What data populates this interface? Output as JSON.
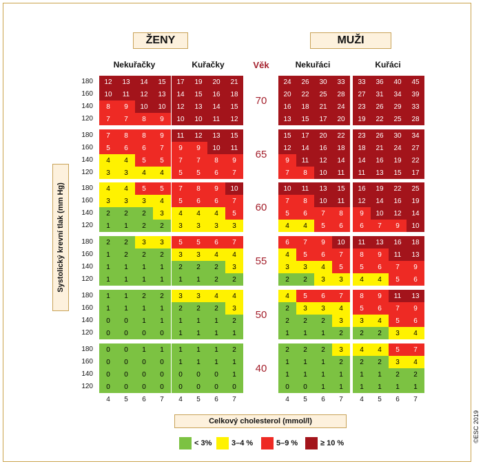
{
  "chart_data": {
    "type": "heatmap",
    "title": "",
    "sex_headers": [
      "ŽENY",
      "MUŽI"
    ],
    "groups": [
      {
        "name": "Nekuřačky",
        "sex": "ŽENY"
      },
      {
        "name": "Kuřačky",
        "sex": "ŽENY"
      },
      {
        "name": "Nekuřáci",
        "sex": "MUŽI"
      },
      {
        "name": "Kuřáci",
        "sex": "MUŽI"
      }
    ],
    "age_header": "Věk",
    "ages": [
      "70",
      "65",
      "60",
      "55",
      "50",
      "40"
    ],
    "sbp_levels": [
      "180",
      "160",
      "140",
      "120"
    ],
    "cholesterol": [
      "4",
      "5",
      "6",
      "7"
    ],
    "ylabel": "Systolický krevní tlak (mm Hg)",
    "xlabel": "Celkový cholesterol (mmol/l)",
    "legend": [
      {
        "label": "< 3%",
        "color": "#7cc242"
      },
      {
        "label": "3–4 %",
        "color": "#fff200"
      },
      {
        "label": "5–9 %",
        "color": "#ee2a24"
      },
      {
        "label": "≥ 10 %",
        "color": "#a3141b"
      }
    ],
    "copyright": "©ESC 2019",
    "values": [
      [
        [
          [
            12,
            13,
            14,
            15
          ],
          [
            10,
            11,
            12,
            13
          ],
          [
            8,
            9,
            10,
            10
          ],
          [
            7,
            7,
            8,
            9
          ]
        ],
        [
          [
            17,
            19,
            20,
            21
          ],
          [
            14,
            15,
            16,
            18
          ],
          [
            12,
            13,
            14,
            15
          ],
          [
            10,
            10,
            11,
            12
          ]
        ],
        [
          [
            24,
            26,
            30,
            33
          ],
          [
            20,
            22,
            25,
            28
          ],
          [
            16,
            18,
            21,
            24
          ],
          [
            13,
            15,
            17,
            20
          ]
        ],
        [
          [
            33,
            36,
            40,
            45
          ],
          [
            27,
            31,
            34,
            39
          ],
          [
            23,
            26,
            29,
            33
          ],
          [
            19,
            22,
            25,
            28
          ]
        ]
      ],
      [
        [
          [
            7,
            8,
            8,
            9
          ],
          [
            5,
            6,
            6,
            7
          ],
          [
            4,
            4,
            5,
            5
          ],
          [
            3,
            3,
            4,
            4
          ]
        ],
        [
          [
            11,
            12,
            13,
            15
          ],
          [
            9,
            9,
            10,
            11
          ],
          [
            7,
            7,
            8,
            9
          ],
          [
            5,
            5,
            6,
            7
          ]
        ],
        [
          [
            15,
            17,
            20,
            22
          ],
          [
            12,
            14,
            16,
            18
          ],
          [
            9,
            11,
            12,
            14
          ],
          [
            7,
            8,
            10,
            11
          ]
        ],
        [
          [
            23,
            26,
            30,
            34
          ],
          [
            18,
            21,
            24,
            27
          ],
          [
            14,
            16,
            19,
            22
          ],
          [
            11,
            13,
            15,
            17
          ]
        ]
      ],
      [
        [
          [
            4,
            4,
            5,
            5
          ],
          [
            3,
            3,
            3,
            4
          ],
          [
            2,
            2,
            2,
            3
          ],
          [
            1,
            1,
            2,
            2
          ]
        ],
        [
          [
            7,
            8,
            9,
            10
          ],
          [
            5,
            6,
            6,
            7
          ],
          [
            4,
            4,
            4,
            5
          ],
          [
            3,
            3,
            3,
            3
          ]
        ],
        [
          [
            10,
            11,
            13,
            15
          ],
          [
            7,
            8,
            10,
            11
          ],
          [
            5,
            6,
            7,
            8
          ],
          [
            4,
            4,
            5,
            6
          ]
        ],
        [
          [
            16,
            19,
            22,
            25
          ],
          [
            12,
            14,
            16,
            19
          ],
          [
            9,
            10,
            12,
            14
          ],
          [
            6,
            7,
            9,
            10
          ]
        ]
      ],
      [
        [
          [
            2,
            2,
            3,
            3
          ],
          [
            1,
            2,
            2,
            2
          ],
          [
            1,
            1,
            1,
            1
          ],
          [
            1,
            1,
            1,
            1
          ]
        ],
        [
          [
            5,
            5,
            6,
            7
          ],
          [
            3,
            3,
            4,
            4
          ],
          [
            2,
            2,
            2,
            3
          ],
          [
            1,
            1,
            2,
            2
          ]
        ],
        [
          [
            6,
            7,
            9,
            10
          ],
          [
            4,
            5,
            6,
            7
          ],
          [
            3,
            3,
            4,
            5
          ],
          [
            2,
            2,
            3,
            3
          ]
        ],
        [
          [
            11,
            13,
            16,
            18
          ],
          [
            8,
            9,
            11,
            13
          ],
          [
            5,
            6,
            7,
            9
          ],
          [
            4,
            4,
            5,
            6
          ]
        ]
      ],
      [
        [
          [
            1,
            1,
            2,
            2
          ],
          [
            1,
            1,
            1,
            1
          ],
          [
            0,
            0,
            1,
            1
          ],
          [
            0,
            0,
            0,
            0
          ]
        ],
        [
          [
            3,
            3,
            4,
            4
          ],
          [
            2,
            2,
            2,
            3
          ],
          [
            1,
            1,
            1,
            2
          ],
          [
            1,
            1,
            1,
            1
          ]
        ],
        [
          [
            4,
            5,
            6,
            7
          ],
          [
            2,
            3,
            3,
            4
          ],
          [
            2,
            2,
            2,
            3
          ],
          [
            1,
            1,
            1,
            2
          ]
        ],
        [
          [
            8,
            9,
            11,
            13
          ],
          [
            5,
            6,
            7,
            9
          ],
          [
            3,
            4,
            5,
            6
          ],
          [
            2,
            2,
            3,
            4
          ]
        ]
      ],
      [
        [
          [
            0,
            0,
            1,
            1
          ],
          [
            0,
            0,
            0,
            0
          ],
          [
            0,
            0,
            0,
            0
          ],
          [
            0,
            0,
            0,
            0
          ]
        ],
        [
          [
            1,
            1,
            1,
            2
          ],
          [
            1,
            1,
            1,
            1
          ],
          [
            0,
            0,
            0,
            1
          ],
          [
            0,
            0,
            0,
            0
          ]
        ],
        [
          [
            2,
            2,
            2,
            3
          ],
          [
            1,
            1,
            1,
            2
          ],
          [
            1,
            1,
            1,
            1
          ],
          [
            0,
            0,
            1,
            1
          ]
        ],
        [
          [
            4,
            4,
            5,
            7
          ],
          [
            2,
            2,
            3,
            4
          ],
          [
            1,
            1,
            2,
            2
          ],
          [
            1,
            1,
            1,
            1
          ]
        ]
      ]
    ]
  }
}
